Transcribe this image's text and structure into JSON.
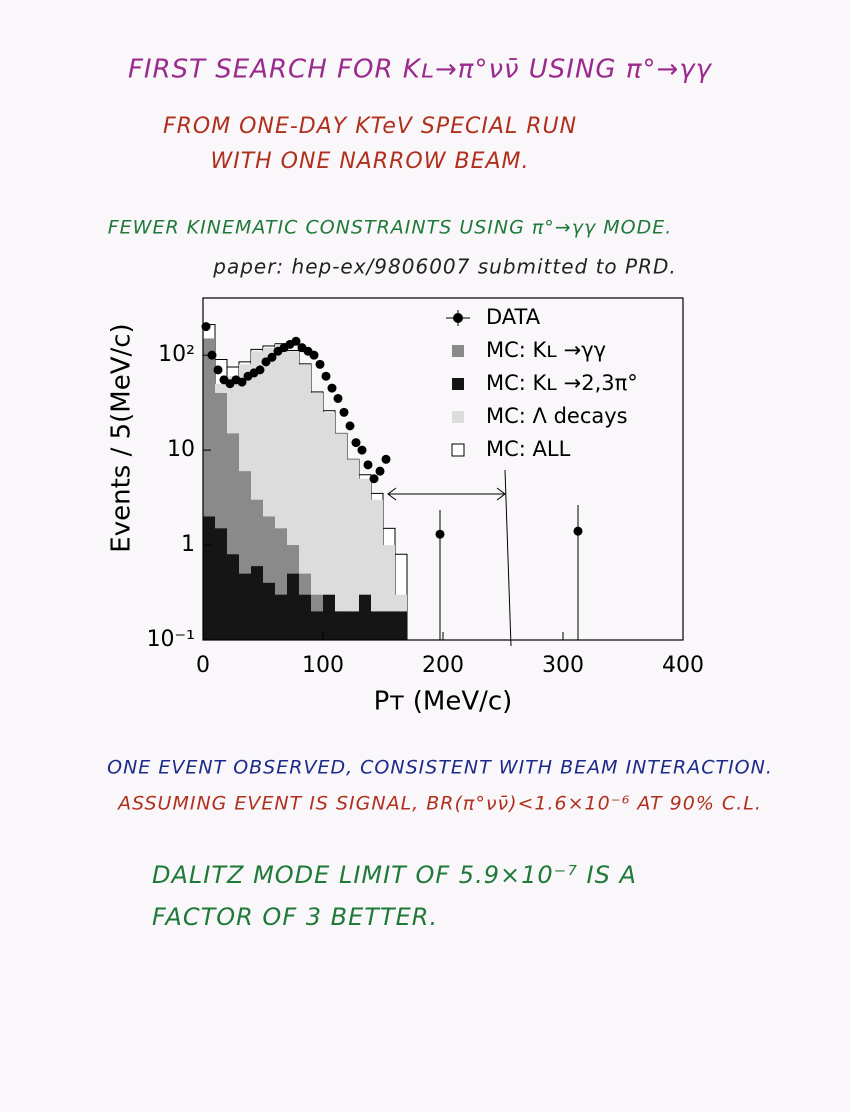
{
  "notes": {
    "title": "FIRST SEARCH FOR Kʟ→π°νν̄ USING π°→γγ",
    "run_line_1": "FROM ONE-DAY KTeV SPECIAL RUN",
    "run_line_2": "WITH ONE NARROW BEAM.",
    "constraints": "FEWER KINEMATIC CONSTRAINTS USING π°→γγ MODE.",
    "paper": "paper: hep-ex/9806007 submitted to PRD.",
    "observed": "ONE EVENT OBSERVED, CONSISTENT WITH BEAM INTERACTION.",
    "limit": "ASSUMING EVENT IS SIGNAL, BR(π°νν̄)<1.6×10⁻⁶ AT 90% C.L.",
    "dalitz_1": "DALITZ MODE LIMIT OF 5.9×10⁻⁷ IS A",
    "dalitz_2": "FACTOR OF 3 BETTER."
  },
  "chart_data": {
    "type": "histogram",
    "x_label": "Pᴛ (MeV/c)",
    "y_label": "Events / 5(MeV/c)",
    "xlim": [
      0,
      400
    ],
    "ylim": [
      0.1,
      400
    ],
    "log_y": true,
    "legend": "upper right",
    "xticks": [
      0,
      100,
      200,
      300,
      400
    ],
    "yticks": [
      {
        "value": 0.1,
        "label": "10⁻¹"
      },
      1,
      10,
      {
        "value": 100,
        "label": "10²"
      }
    ],
    "bins": [
      0,
      10,
      20,
      30,
      40,
      50,
      60,
      70,
      80,
      90,
      100,
      110,
      120,
      130,
      140,
      150,
      160,
      170
    ],
    "series": [
      {
        "name": "DATA",
        "kind": "points",
        "color": "#000000",
        "x": [
          2.5,
          7.5,
          12.5,
          17.5,
          22.5,
          27.5,
          32.5,
          37.5,
          42.5,
          47.5,
          52.5,
          57.5,
          62.5,
          67.5,
          72.5,
          77.5,
          82.5,
          87.5,
          92.5,
          97.5,
          102.5,
          107.5,
          112.5,
          117.5,
          122.5,
          127.5,
          132.5,
          137.5,
          142.5,
          147.5,
          152.5,
          197.5,
          312.5
        ],
        "values": [
          200,
          100,
          70,
          55,
          50,
          55,
          52,
          60,
          65,
          70,
          85,
          95,
          110,
          120,
          130,
          140,
          120,
          110,
          100,
          80,
          60,
          45,
          35,
          25,
          18,
          12,
          10,
          7,
          5,
          6,
          8,
          1.3,
          1.4
        ]
      },
      {
        "name": "MC: ALL",
        "kind": "histogram",
        "color": "#ffffff",
        "values": [
          210,
          90,
          75,
          85,
          115,
          125,
          132,
          112,
          81,
          41,
          26,
          15,
          8,
          5.5,
          3.5,
          1.5,
          0.8
        ]
      },
      {
        "name": "MC: Λ decays",
        "kind": "histogram",
        "color": "#dcdcdc",
        "values": [
          60,
          50,
          60,
          80,
          110,
          120,
          130,
          110,
          80,
          40,
          25,
          15,
          8,
          5,
          3,
          1,
          0.3
        ]
      },
      {
        "name": "MC: Kʟ →γγ",
        "kind": "histogram",
        "color": "#8a8a8a",
        "values": [
          150,
          40,
          15,
          6,
          3,
          2,
          1.5,
          1,
          0.5,
          0.3,
          0.2,
          0.2,
          0.15,
          0.15,
          0.12,
          0.12,
          0.11
        ]
      },
      {
        "name": "MC: Kʟ →2,3π°",
        "kind": "histogram",
        "color": "#151515",
        "values": [
          2,
          1.5,
          0.8,
          0.5,
          0.6,
          0.4,
          0.3,
          0.5,
          0.3,
          0.2,
          0.3,
          0.2,
          0.2,
          0.3,
          0.2,
          0.2,
          0.2
        ]
      }
    ]
  }
}
